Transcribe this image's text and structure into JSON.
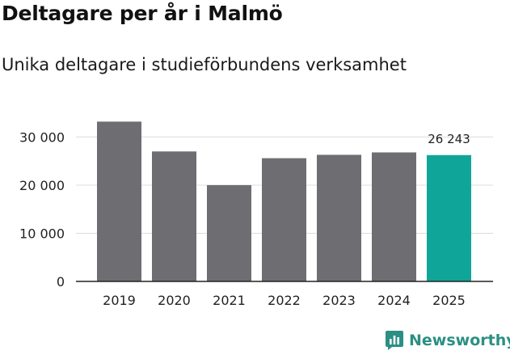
{
  "title": "Deltagare per år i Malmö",
  "subtitle": "Unika deltagare i studieförbundens verksamhet",
  "brand": "Newsworthy",
  "colors": {
    "bar": "#6e6d72",
    "highlight": "#0fa699",
    "grid": "#dcdcdc",
    "brand": "#2b8f84"
  },
  "chart_data": {
    "type": "bar",
    "categories": [
      "2019",
      "2020",
      "2021",
      "2022",
      "2023",
      "2024",
      "2025"
    ],
    "values": [
      33200,
      27000,
      20000,
      25600,
      26300,
      26800,
      26243
    ],
    "highlight_index": 6,
    "data_labels": [
      {
        "index": 6,
        "text": "26 243"
      }
    ],
    "yticks": [
      0,
      10000,
      20000,
      30000
    ],
    "ytick_labels": [
      "0",
      "10 000",
      "20 000",
      "30 000"
    ],
    "ylim": [
      0,
      33600
    ],
    "grid": true
  }
}
